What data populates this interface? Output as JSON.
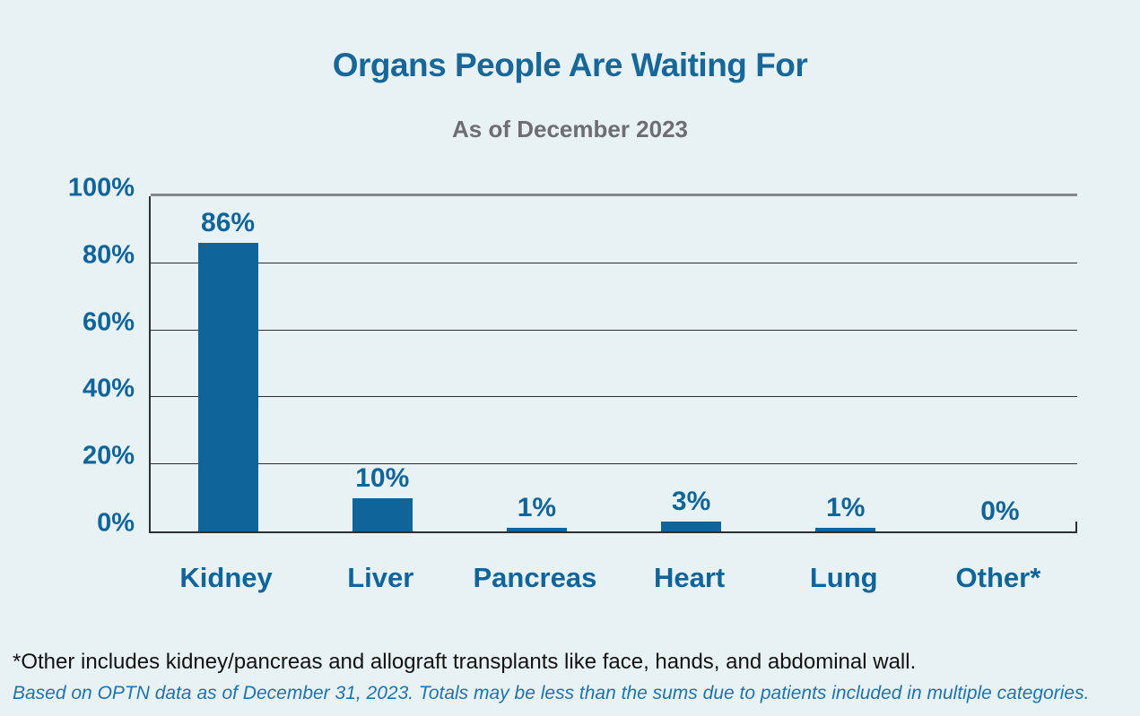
{
  "header": {
    "title": "Organs People Are Waiting For",
    "subtitle": "As of December 2023"
  },
  "footnotes": {
    "other_definition": "*Other includes kidney/pancreas and allograft transplants like face, hands, and abdominal wall.",
    "source": "Based on OPTN data as of December 31, 2023. Totals may be less than the sums due to patients included in multiple categories."
  },
  "colors": {
    "background": "#e8f2f5",
    "bar": "#0f6599",
    "title_blue": "#176898",
    "label_blue": "#0f6599",
    "subtitle_gray": "#6d6e71",
    "gridline_dark": "#2b2f33",
    "top_gridline_gray": "#84888b",
    "footnote_black": "#121212",
    "source_blue": "#1f73ab"
  },
  "chart_data": {
    "type": "bar",
    "title": "Organs People Are Waiting For",
    "subtitle": "As of December 2023",
    "categories": [
      "Kidney",
      "Liver",
      "Pancreas",
      "Heart",
      "Lung",
      "Other*"
    ],
    "values": [
      86,
      10,
      1,
      3,
      1,
      0
    ],
    "value_labels": [
      "86%",
      "10%",
      "1%",
      "3%",
      "1%",
      "0%"
    ],
    "yticks": [
      0,
      20,
      40,
      60,
      80,
      100
    ],
    "ytick_labels": [
      "0%",
      "20%",
      "40%",
      "60%",
      "80%",
      "100%"
    ],
    "ylim": [
      0,
      100
    ],
    "xlabel": "",
    "ylabel": "",
    "grid": "horizontal",
    "legend": "none"
  }
}
